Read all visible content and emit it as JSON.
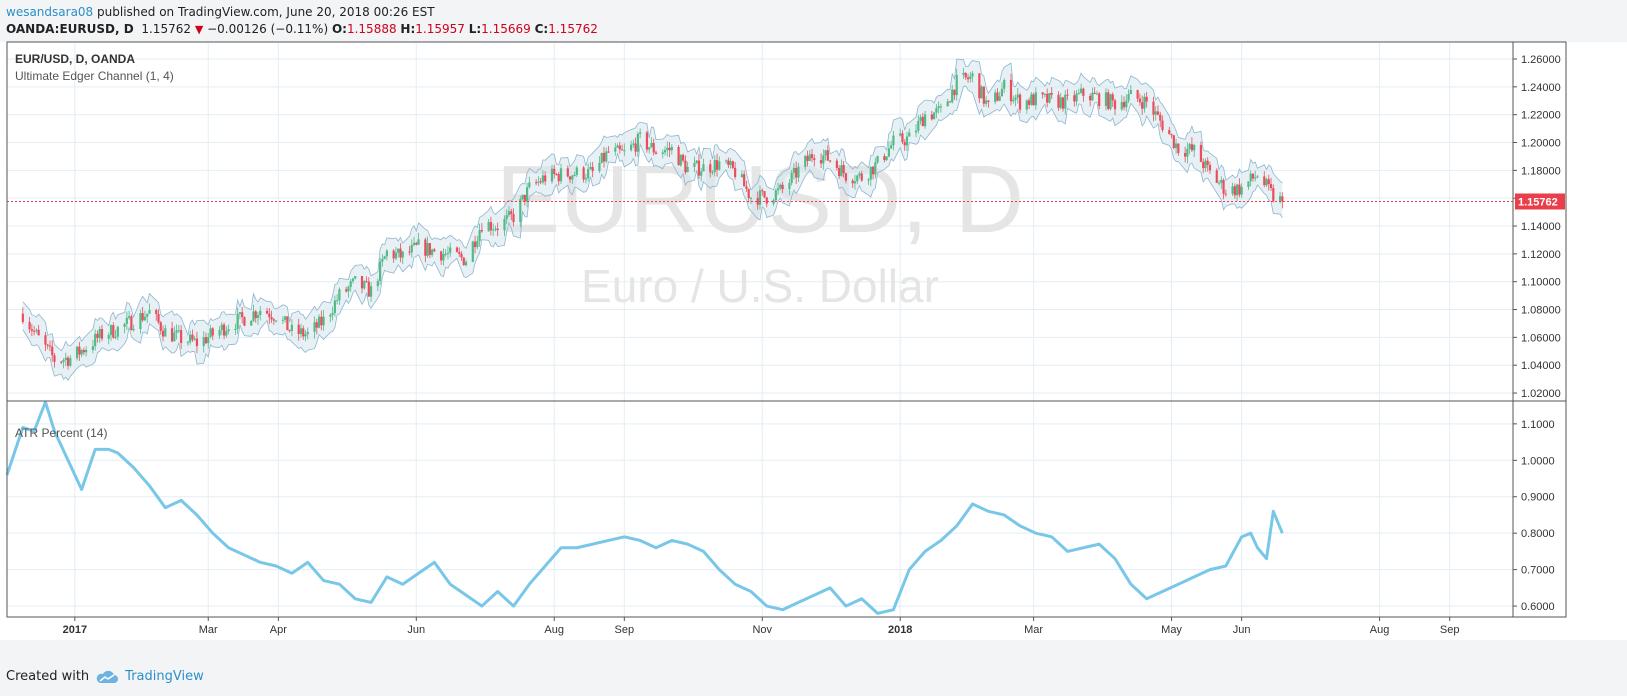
{
  "header": {
    "author": "wesandsara08",
    "published": "published on TradingView.com, June 20, 2018 00:26 EST",
    "symbol": "OANDA:EURUSD, D",
    "last": "1.15762",
    "direction_icon": "down-triangle-icon",
    "change": "−0.00126 (−0.11%)",
    "open_label": "O:",
    "open": "1.15888",
    "high_label": "H:",
    "high": "1.15957",
    "low_label": "L:",
    "low": "1.15669",
    "close_label": "C:",
    "close": "1.15762"
  },
  "footer": {
    "created_with": "Created with",
    "brand": "TradingView",
    "brand_icon": "cloud-logo-icon"
  },
  "chart_data": [
    {
      "type": "candlestick",
      "title": "EUR/USD, D, OANDA",
      "indicator": "Ultimate Edger Channel (1, 4)",
      "watermark": "EURUSD, D",
      "watermark_sub": "Euro / U.S. Dollar",
      "last_price_label": "1.15762",
      "last_price": 1.15762,
      "ylim": [
        1.015,
        1.2715
      ],
      "y_ticks": [
        "1.02000",
        "1.04000",
        "1.06000",
        "1.08000",
        "1.10000",
        "1.12000",
        "1.14000",
        "1.16000",
        "1.18000",
        "1.20000",
        "1.22000",
        "1.24000",
        "1.26000"
      ],
      "grid": true,
      "colors": {
        "up": "#53b987",
        "down": "#eb4d5c",
        "channel": "#8fb6cc",
        "last_line": "#e83f4b"
      },
      "close_series": {
        "dates": [
          "2016-12-09",
          "2016-12-16",
          "2016-12-23",
          "2016-12-30",
          "2017-01-06",
          "2017-01-13",
          "2017-01-20",
          "2017-01-27",
          "2017-02-03",
          "2017-02-10",
          "2017-02-17",
          "2017-02-24",
          "2017-03-03",
          "2017-03-10",
          "2017-03-17",
          "2017-03-24",
          "2017-03-31",
          "2017-04-07",
          "2017-04-14",
          "2017-04-21",
          "2017-04-28",
          "2017-05-05",
          "2017-05-12",
          "2017-05-19",
          "2017-05-26",
          "2017-06-02",
          "2017-06-09",
          "2017-06-16",
          "2017-06-23",
          "2017-06-30",
          "2017-07-07",
          "2017-07-14",
          "2017-07-21",
          "2017-07-28",
          "2017-08-04",
          "2017-08-11",
          "2017-08-18",
          "2017-08-25",
          "2017-09-01",
          "2017-09-08",
          "2017-09-15",
          "2017-09-22",
          "2017-09-29",
          "2017-10-06",
          "2017-10-13",
          "2017-10-20",
          "2017-10-27",
          "2017-11-03",
          "2017-11-10",
          "2017-11-17",
          "2017-11-24",
          "2017-12-01",
          "2017-12-08",
          "2017-12-15",
          "2017-12-22",
          "2017-12-29",
          "2018-01-05",
          "2018-01-12",
          "2018-01-19",
          "2018-01-26",
          "2018-02-02",
          "2018-02-09",
          "2018-02-16",
          "2018-02-23",
          "2018-03-02",
          "2018-03-09",
          "2018-03-16",
          "2018-03-23",
          "2018-03-30",
          "2018-04-06",
          "2018-04-13",
          "2018-04-20",
          "2018-04-27",
          "2018-05-04",
          "2018-05-11",
          "2018-05-18",
          "2018-05-25",
          "2018-06-01",
          "2018-06-08",
          "2018-06-15",
          "2018-06-19"
        ],
        "values": [
          1.077,
          1.059,
          1.044,
          1.045,
          1.053,
          1.062,
          1.066,
          1.072,
          1.078,
          1.064,
          1.059,
          1.056,
          1.062,
          1.069,
          1.074,
          1.08,
          1.076,
          1.064,
          1.062,
          1.072,
          1.09,
          1.099,
          1.093,
          1.121,
          1.118,
          1.125,
          1.122,
          1.119,
          1.116,
          1.142,
          1.14,
          1.147,
          1.167,
          1.175,
          1.177,
          1.178,
          1.178,
          1.193,
          1.192,
          1.202,
          1.194,
          1.195,
          1.181,
          1.182,
          1.185,
          1.179,
          1.161,
          1.161,
          1.166,
          1.18,
          1.193,
          1.188,
          1.177,
          1.175,
          1.185,
          1.2,
          1.203,
          1.22,
          1.222,
          1.243,
          1.247,
          1.225,
          1.24,
          1.229,
          1.231,
          1.23,
          1.229,
          1.235,
          1.232,
          1.228,
          1.233,
          1.229,
          1.213,
          1.196,
          1.194,
          1.178,
          1.166,
          1.167,
          1.177,
          1.161,
          1.1576
        ]
      },
      "x_ticks": [
        {
          "label": "2017",
          "date": "2017-01-01",
          "bold": true
        },
        {
          "label": "Mar",
          "date": "2017-03-01"
        },
        {
          "label": "Apr",
          "date": "2017-04-01"
        },
        {
          "label": "Jun",
          "date": "2017-06-01"
        },
        {
          "label": "Aug",
          "date": "2017-08-01"
        },
        {
          "label": "Sep",
          "date": "2017-09-01"
        },
        {
          "label": "Nov",
          "date": "2017-11-01"
        },
        {
          "label": "2018",
          "date": "2018-01-01",
          "bold": true
        },
        {
          "label": "Mar",
          "date": "2018-03-01"
        },
        {
          "label": "May",
          "date": "2018-05-01"
        },
        {
          "label": "Jun",
          "date": "2018-06-01"
        },
        {
          "label": "Aug",
          "date": "2018-08-01"
        },
        {
          "label": "Sep",
          "date": "2018-09-01"
        }
      ],
      "x_range": [
        "2016-12-02",
        "2018-09-29"
      ]
    },
    {
      "type": "line",
      "title": "ATR Percent (14)",
      "color": "#79c7e8",
      "ylim": [
        0.57,
        1.16
      ],
      "y_ticks": [
        "0.6000",
        "0.7000",
        "0.8000",
        "0.9000",
        "1.0000",
        "1.1000"
      ],
      "dates": [
        "2016-12-02",
        "2016-12-09",
        "2016-12-14",
        "2016-12-19",
        "2016-12-23",
        "2016-12-29",
        "2017-01-04",
        "2017-01-10",
        "2017-01-16",
        "2017-01-20",
        "2017-01-27",
        "2017-02-03",
        "2017-02-10",
        "2017-02-17",
        "2017-02-24",
        "2017-03-03",
        "2017-03-10",
        "2017-03-17",
        "2017-03-24",
        "2017-03-31",
        "2017-04-07",
        "2017-04-14",
        "2017-04-21",
        "2017-04-28",
        "2017-05-05",
        "2017-05-12",
        "2017-05-19",
        "2017-05-26",
        "2017-06-02",
        "2017-06-09",
        "2017-06-16",
        "2017-06-23",
        "2017-06-30",
        "2017-07-07",
        "2017-07-14",
        "2017-07-21",
        "2017-07-28",
        "2017-08-04",
        "2017-08-11",
        "2017-08-18",
        "2017-08-25",
        "2017-09-01",
        "2017-09-08",
        "2017-09-15",
        "2017-09-22",
        "2017-09-29",
        "2017-10-06",
        "2017-10-13",
        "2017-10-20",
        "2017-10-27",
        "2017-11-03",
        "2017-11-10",
        "2017-11-17",
        "2017-11-24",
        "2017-12-01",
        "2017-12-08",
        "2017-12-15",
        "2017-12-22",
        "2017-12-29",
        "2018-01-05",
        "2018-01-12",
        "2018-01-19",
        "2018-01-26",
        "2018-02-02",
        "2018-02-09",
        "2018-02-16",
        "2018-02-23",
        "2018-03-02",
        "2018-03-09",
        "2018-03-16",
        "2018-03-23",
        "2018-03-30",
        "2018-04-06",
        "2018-04-13",
        "2018-04-20",
        "2018-04-27",
        "2018-05-04",
        "2018-05-11",
        "2018-05-18",
        "2018-05-25",
        "2018-06-01",
        "2018-06-05",
        "2018-06-08",
        "2018-06-12",
        "2018-06-15",
        "2018-06-19"
      ],
      "values": [
        0.96,
        1.09,
        1.08,
        1.16,
        1.08,
        1.0,
        0.92,
        1.03,
        1.03,
        1.02,
        0.98,
        0.93,
        0.87,
        0.89,
        0.85,
        0.8,
        0.76,
        0.74,
        0.72,
        0.71,
        0.69,
        0.72,
        0.67,
        0.66,
        0.62,
        0.61,
        0.68,
        0.66,
        0.69,
        0.72,
        0.66,
        0.63,
        0.6,
        0.64,
        0.6,
        0.66,
        0.71,
        0.76,
        0.76,
        0.77,
        0.78,
        0.79,
        0.78,
        0.76,
        0.78,
        0.77,
        0.75,
        0.7,
        0.66,
        0.64,
        0.6,
        0.59,
        0.61,
        0.63,
        0.65,
        0.6,
        0.62,
        0.58,
        0.59,
        0.7,
        0.75,
        0.78,
        0.82,
        0.88,
        0.86,
        0.85,
        0.82,
        0.8,
        0.79,
        0.75,
        0.76,
        0.77,
        0.73,
        0.66,
        0.62,
        0.64,
        0.66,
        0.68,
        0.7,
        0.71,
        0.79,
        0.8,
        0.76,
        0.73,
        0.86,
        0.8
      ]
    }
  ]
}
